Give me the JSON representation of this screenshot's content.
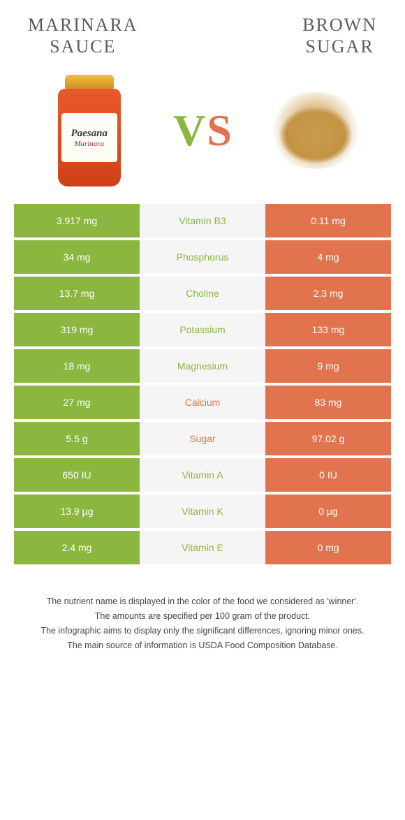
{
  "colors": {
    "left": "#8bb63f",
    "right": "#e2734f",
    "neutral_bg": "#f5f5f5",
    "title": "#5b5b5b"
  },
  "header": {
    "left_title": "MARINARA\nSAUCE",
    "right_title": "BROWN\nSUGAR"
  },
  "vs": {
    "v": "V",
    "s": "S"
  },
  "jar": {
    "brand": "Paesana",
    "sub": "Marinara"
  },
  "rows": [
    {
      "left": "3.917 mg",
      "name": "Vitamin B3",
      "right": "0.11 mg",
      "winner": "left"
    },
    {
      "left": "34 mg",
      "name": "Phosphorus",
      "right": "4 mg",
      "winner": "left"
    },
    {
      "left": "13.7 mg",
      "name": "Choline",
      "right": "2.3 mg",
      "winner": "left"
    },
    {
      "left": "319 mg",
      "name": "Potassium",
      "right": "133 mg",
      "winner": "left"
    },
    {
      "left": "18 mg",
      "name": "Magnesium",
      "right": "9 mg",
      "winner": "left"
    },
    {
      "left": "27 mg",
      "name": "Calcium",
      "right": "83 mg",
      "winner": "right"
    },
    {
      "left": "5.5 g",
      "name": "Sugar",
      "right": "97.02 g",
      "winner": "right"
    },
    {
      "left": "650 IU",
      "name": "Vitamin A",
      "right": "0 IU",
      "winner": "left"
    },
    {
      "left": "13.9 µg",
      "name": "Vitamin K",
      "right": "0 µg",
      "winner": "left"
    },
    {
      "left": "2.4 mg",
      "name": "Vitamin E",
      "right": "0 mg",
      "winner": "left"
    }
  ],
  "footnotes": [
    "The nutrient name is displayed in the color of the food we considered as 'winner'.",
    "The amounts are specified per 100 gram of the product.",
    "The infographic aims to display only the significant differences, ignoring minor ones.",
    "The main source of information is USDA Food Composition Database."
  ]
}
